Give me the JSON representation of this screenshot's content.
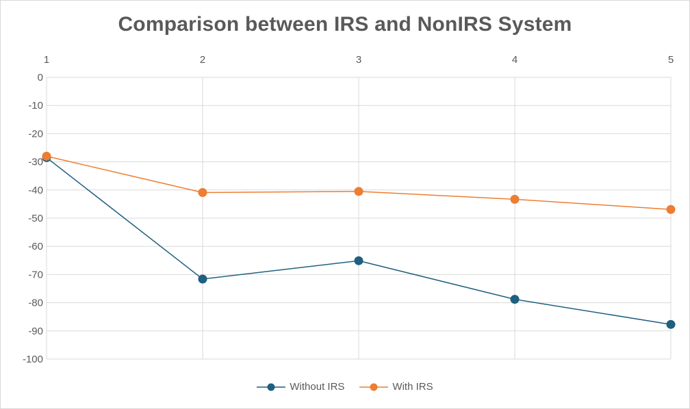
{
  "chart_data": {
    "type": "line",
    "title": "Comparison between IRS and NonIRS System",
    "xlabel": "",
    "ylabel": "",
    "x": [
      1,
      2,
      3,
      4,
      5
    ],
    "xlim": [
      1,
      5
    ],
    "ylim": [
      -100,
      0
    ],
    "y_ticks": [
      0,
      -10,
      -20,
      -30,
      -40,
      -50,
      -60,
      -70,
      -80,
      -90,
      -100
    ],
    "x_axis_position": "top",
    "grid": true,
    "legend": "bottom",
    "series": [
      {
        "name": "Without IRS",
        "color": "#1f5f7f",
        "values": [
          -28.5,
          -71.6,
          -65.1,
          -78.8,
          -87.7
        ]
      },
      {
        "name": "With IRS",
        "color": "#ed7d31",
        "values": [
          -28.0,
          -40.9,
          -40.5,
          -43.3,
          -46.9
        ]
      }
    ]
  }
}
